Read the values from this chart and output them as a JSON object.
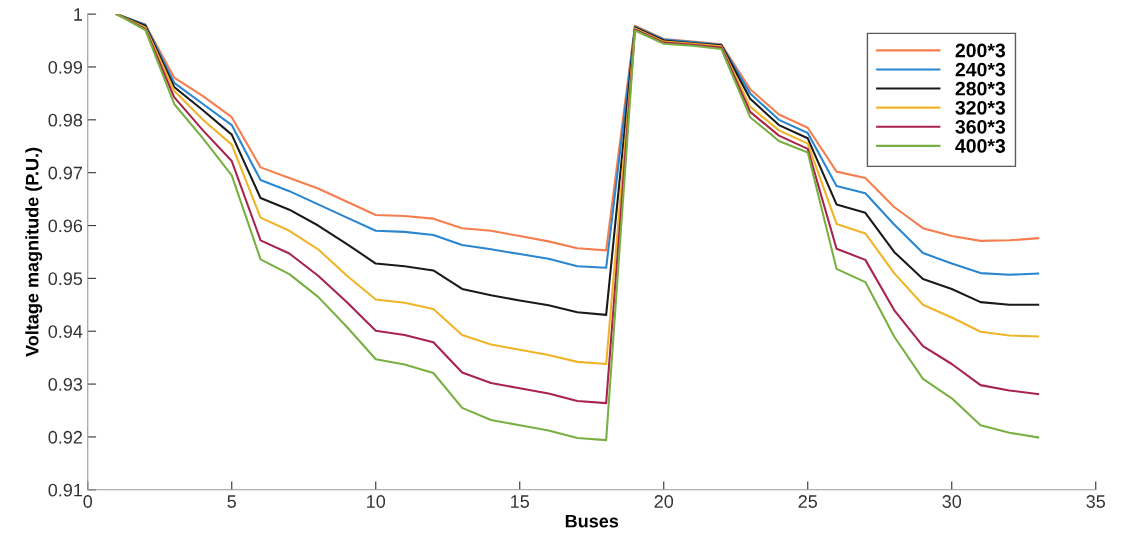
{
  "chart_data": {
    "type": "line",
    "xlabel": "Buses",
    "ylabel": "Voltage magnitude (P.U.)",
    "x": [
      1,
      2,
      3,
      4,
      5,
      6,
      7,
      8,
      9,
      10,
      11,
      12,
      13,
      14,
      15,
      16,
      17,
      18,
      19,
      20,
      21,
      22,
      23,
      24,
      25,
      26,
      27,
      28,
      29,
      30,
      31,
      32,
      33
    ],
    "xlim": [
      0,
      35
    ],
    "xticks": [
      0,
      5,
      10,
      15,
      20,
      25,
      30,
      35
    ],
    "ylim": [
      0.91,
      1
    ],
    "yticks": [
      0.91,
      0.92,
      0.93,
      0.94,
      0.95,
      0.96,
      0.97,
      0.98,
      0.99,
      1
    ],
    "grid": false,
    "legend": "top right",
    "marker": "none",
    "line_style": "solid",
    "series": [
      {
        "name": "200*3",
        "color": "#f57e4e",
        "values": [
          1.0,
          0.998,
          0.988,
          0.9845,
          0.9805,
          0.971,
          0.969,
          0.967,
          0.9645,
          0.962,
          0.9618,
          0.9613,
          0.9595,
          0.959,
          0.958,
          0.957,
          0.9557,
          0.9553,
          0.9978,
          0.9953,
          0.9948,
          0.9943,
          0.9858,
          0.981,
          0.9785,
          0.9702,
          0.969,
          0.9635,
          0.9595,
          0.958,
          0.9571,
          0.9572,
          0.9576
        ]
      },
      {
        "name": "240*3",
        "color": "#2a86cf",
        "values": [
          1.0,
          0.998,
          0.987,
          0.983,
          0.979,
          0.9686,
          0.9665,
          0.964,
          0.9615,
          0.959,
          0.9588,
          0.9582,
          0.9563,
          0.9555,
          0.9546,
          0.9537,
          0.9523,
          0.952,
          0.9976,
          0.9952,
          0.9947,
          0.9942,
          0.985,
          0.98,
          0.9775,
          0.9675,
          0.9661,
          0.9602,
          0.9548,
          0.9528,
          0.951,
          0.9507,
          0.9509
        ]
      },
      {
        "name": "280*3",
        "color": "#1a1a1a",
        "values": [
          1.0,
          0.9978,
          0.9862,
          0.9818,
          0.9772,
          0.9652,
          0.963,
          0.96,
          0.9565,
          0.9528,
          0.9523,
          0.9515,
          0.948,
          0.9468,
          0.9458,
          0.9449,
          0.9436,
          0.9431,
          0.9975,
          0.995,
          0.9945,
          0.9941,
          0.984,
          0.979,
          0.9765,
          0.964,
          0.9624,
          0.955,
          0.9499,
          0.948,
          0.9455,
          0.945,
          0.945
        ]
      },
      {
        "name": "320*3",
        "color": "#f0b429",
        "values": [
          1.0,
          0.9975,
          0.9855,
          0.98,
          0.9753,
          0.9615,
          0.959,
          0.9555,
          0.9505,
          0.946,
          0.9454,
          0.9442,
          0.9393,
          0.9375,
          0.9365,
          0.9355,
          0.9342,
          0.9338,
          0.9973,
          0.9948,
          0.9944,
          0.9939,
          0.9825,
          0.978,
          0.9755,
          0.9603,
          0.9585,
          0.951,
          0.945,
          0.9426,
          0.9399,
          0.9392,
          0.939
        ]
      },
      {
        "name": "360*3",
        "color": "#a8244d",
        "values": [
          1.0,
          0.9972,
          0.9843,
          0.978,
          0.9722,
          0.9572,
          0.9547,
          0.9505,
          0.9455,
          0.9401,
          0.9393,
          0.9379,
          0.9322,
          0.9302,
          0.9292,
          0.9282,
          0.9268,
          0.9264,
          0.9971,
          0.9946,
          0.9942,
          0.9937,
          0.9815,
          0.977,
          0.9745,
          0.9556,
          0.9535,
          0.944,
          0.9372,
          0.9338,
          0.9298,
          0.9288,
          0.9281
        ]
      },
      {
        "name": "400*3",
        "color": "#78b043",
        "values": [
          1.0,
          0.997,
          0.983,
          0.9765,
          0.9695,
          0.9536,
          0.9508,
          0.9465,
          0.9408,
          0.9347,
          0.9337,
          0.9321,
          0.9255,
          0.9232,
          0.9222,
          0.9212,
          0.9198,
          0.9194,
          0.9969,
          0.9944,
          0.994,
          0.9934,
          0.9805,
          0.976,
          0.9738,
          0.9518,
          0.9493,
          0.939,
          0.931,
          0.9273,
          0.9222,
          0.9208,
          0.9199
        ]
      }
    ]
  }
}
